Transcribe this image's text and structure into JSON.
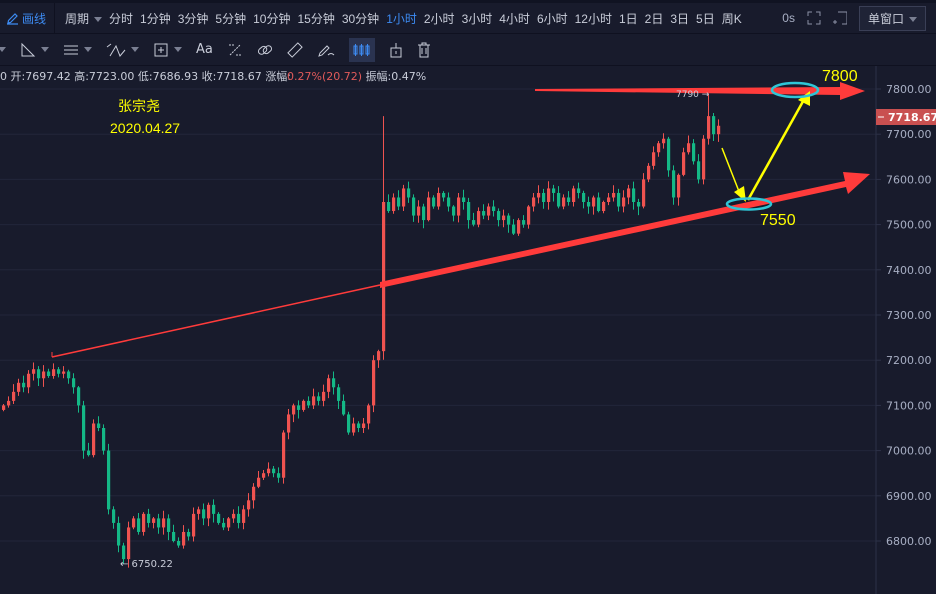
{
  "toolbar": {
    "draw_label": "画线",
    "period_label": "周期",
    "periods": [
      "分时",
      "1分钟",
      "3分钟",
      "5分钟",
      "10分钟",
      "15分钟",
      "30分钟",
      "1小时",
      "2小时",
      "3小时",
      "4小时",
      "6小时",
      "12小时",
      "1日",
      "2日",
      "3日",
      "5日",
      "周K"
    ],
    "active_period": "1小时",
    "refresh": "0s",
    "window_mode": "单窗口"
  },
  "drawing_tools": [
    "line-tool",
    "triangle-tool",
    "parallel-tool",
    "fib-tool",
    "rect-tool",
    "text-tool",
    "measure-tool",
    "link-tool",
    "ruler-tool",
    "pencil-tool",
    "candle-tool",
    "lock-tool",
    "trash-tool"
  ],
  "drawing_text_label": "Aa",
  "info": {
    "lead": "0",
    "open": "开:7697.42",
    "high": "高:7723.00",
    "low": "低:7686.93",
    "close": "收:7718.67",
    "change_label": "涨幅:",
    "change": "0.27%(20.72)",
    "amp": "振幅:0.47%"
  },
  "colors": {
    "up": "#ef5350",
    "down": "#14b886",
    "accent": "#3d8bf2",
    "annotation": "#ffff00",
    "ellipse": "#2fc6d6",
    "trend": "#ff3b3b"
  },
  "annotations": {
    "author": "张宗尧",
    "date": "2020.04.27",
    "target_high": "7800",
    "target_low": "7550",
    "high_marker": "7790 →",
    "low_marker": "← 6750.22"
  },
  "chart_data": {
    "type": "candlestick",
    "yticks": [
      "7800.00",
      "7700.00",
      "7600.00",
      "7500.00",
      "7400.00",
      "7300.00",
      "7200.00",
      "7100.00",
      "7000.00",
      "6900.00",
      "6800.00"
    ],
    "last_price": "7718.67",
    "period_high": 7790,
    "period_low": 6750.22,
    "closes": [
      7100,
      7110,
      7130,
      7150,
      7140,
      7170,
      7180,
      7160,
      7175,
      7165,
      7180,
      7170,
      7175,
      7160,
      7140,
      7100,
      7000,
      6990,
      7060,
      7050,
      7000,
      6870,
      6840,
      6790,
      6760,
      6830,
      6850,
      6820,
      6860,
      6840,
      6850,
      6830,
      6850,
      6820,
      6800,
      6790,
      6820,
      6810,
      6860,
      6870,
      6850,
      6880,
      6860,
      6840,
      6830,
      6850,
      6860,
      6840,
      6870,
      6890,
      6920,
      6940,
      6950,
      6960,
      6950,
      6940,
      7040,
      7080,
      7100,
      7090,
      7110,
      7100,
      7120,
      7110,
      7130,
      7160,
      7140,
      7110,
      7080,
      7040,
      7060,
      7050,
      7060,
      7100,
      7200,
      7220,
      7550,
      7530,
      7560,
      7540,
      7580,
      7560,
      7520,
      7540,
      7510,
      7560,
      7540,
      7570,
      7560,
      7540,
      7520,
      7560,
      7550,
      7510,
      7500,
      7530,
      7520,
      7540,
      7530,
      7510,
      7520,
      7500,
      7480,
      7510,
      7500,
      7540,
      7560,
      7570,
      7550,
      7580,
      7570,
      7540,
      7560,
      7550,
      7580,
      7570,
      7550,
      7540,
      7560,
      7530,
      7550,
      7560,
      7570,
      7540,
      7560,
      7580,
      7550,
      7540,
      7600,
      7630,
      7660,
      7680,
      7690,
      7620,
      7560,
      7610,
      7660,
      7680,
      7640,
      7600,
      7690,
      7740,
      7700,
      7718.67
    ]
  }
}
